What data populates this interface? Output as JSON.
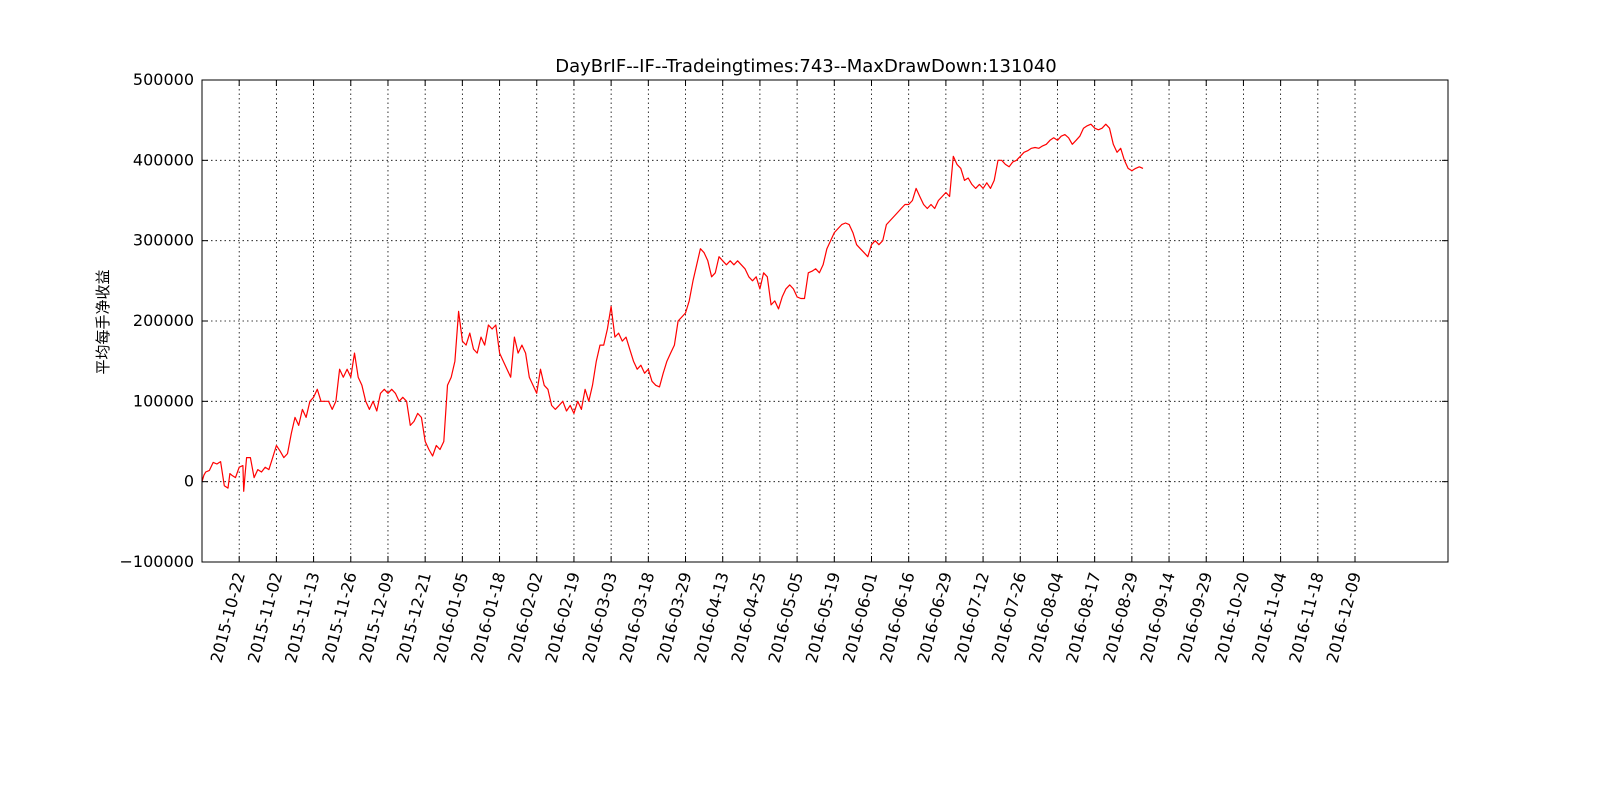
{
  "chart_data": {
    "type": "line",
    "title": "DayBrIF--IF--Tradeingtimes:743--MaxDrawDown:131040",
    "xlabel": "",
    "ylabel": "平均每手净收益",
    "ylim": [
      -100000,
      500000
    ],
    "yticks": [
      -100000,
      0,
      100000,
      200000,
      300000,
      400000,
      500000
    ],
    "ytick_labels": [
      "−100000",
      "0",
      "100000",
      "200000",
      "300000",
      "400000",
      "500000"
    ],
    "xlim": [
      0,
      335
    ],
    "xticks": [
      {
        "x": 10,
        "label": "2015-10-22"
      },
      {
        "x": 20,
        "label": "2015-11-02"
      },
      {
        "x": 30,
        "label": "2015-11-13"
      },
      {
        "x": 40,
        "label": "2015-11-26"
      },
      {
        "x": 50,
        "label": "2015-12-09"
      },
      {
        "x": 60,
        "label": "2015-12-21"
      },
      {
        "x": 70,
        "label": "2016-01-05"
      },
      {
        "x": 80,
        "label": "2016-01-18"
      },
      {
        "x": 90,
        "label": "2016-02-02"
      },
      {
        "x": 100,
        "label": "2016-02-19"
      },
      {
        "x": 110,
        "label": "2016-03-03"
      },
      {
        "x": 120,
        "label": "2016-03-18"
      },
      {
        "x": 130,
        "label": "2016-03-29"
      },
      {
        "x": 140,
        "label": "2016-04-13"
      },
      {
        "x": 150,
        "label": "2016-04-25"
      },
      {
        "x": 160,
        "label": "2016-05-05"
      },
      {
        "x": 170,
        "label": "2016-05-19"
      },
      {
        "x": 180,
        "label": "2016-06-01"
      },
      {
        "x": 190,
        "label": "2016-06-16"
      },
      {
        "x": 200,
        "label": "2016-06-29"
      },
      {
        "x": 210,
        "label": "2016-07-12"
      },
      {
        "x": 220,
        "label": "2016-07-26"
      },
      {
        "x": 230,
        "label": "2016-08-04"
      },
      {
        "x": 240,
        "label": "2016-08-17"
      },
      {
        "x": 250,
        "label": "2016-08-29"
      },
      {
        "x": 260,
        "label": "2016-09-14"
      },
      {
        "x": 270,
        "label": "2016-09-29"
      },
      {
        "x": 280,
        "label": "2016-10-20"
      },
      {
        "x": 290,
        "label": "2016-11-04"
      },
      {
        "x": 300,
        "label": "2016-11-18"
      },
      {
        "x": 310,
        "label": "2016-12-09"
      }
    ],
    "grid": true,
    "series": [
      {
        "color": "#ff0000",
        "points": [
          [
            0,
            0
          ],
          [
            0.5,
            8000
          ],
          [
            1,
            12000
          ],
          [
            2,
            14000
          ],
          [
            3,
            24000
          ],
          [
            4,
            22000
          ],
          [
            5,
            25000
          ],
          [
            6,
            -5000
          ],
          [
            7,
            -8000
          ],
          [
            7.5,
            10000
          ],
          [
            8,
            8000
          ],
          [
            9,
            5000
          ],
          [
            10,
            18000
          ],
          [
            11,
            20000
          ],
          [
            11.2,
            -12000
          ],
          [
            11.5,
            5000
          ],
          [
            12,
            30000
          ],
          [
            13,
            30000
          ],
          [
            14,
            5000
          ],
          [
            15,
            15000
          ],
          [
            16,
            12000
          ],
          [
            17,
            18000
          ],
          [
            18,
            15000
          ],
          [
            19,
            30000
          ],
          [
            20,
            45000
          ],
          [
            21,
            38000
          ],
          [
            22,
            30000
          ],
          [
            23,
            35000
          ],
          [
            24,
            60000
          ],
          [
            25,
            80000
          ],
          [
            26,
            70000
          ],
          [
            27,
            90000
          ],
          [
            28,
            80000
          ],
          [
            29,
            100000
          ],
          [
            30,
            105000
          ],
          [
            31,
            115000
          ],
          [
            32,
            100000
          ],
          [
            33,
            100000
          ],
          [
            34,
            100000
          ],
          [
            35,
            90000
          ],
          [
            36,
            100000
          ],
          [
            37,
            140000
          ],
          [
            38,
            130000
          ],
          [
            39,
            140000
          ],
          [
            40,
            130000
          ],
          [
            41,
            160000
          ],
          [
            42,
            130000
          ],
          [
            43,
            120000
          ],
          [
            44,
            100000
          ],
          [
            45,
            90000
          ],
          [
            46,
            100000
          ],
          [
            47,
            88000
          ],
          [
            48,
            110000
          ],
          [
            49,
            115000
          ],
          [
            50,
            110000
          ],
          [
            51,
            115000
          ],
          [
            52,
            110000
          ],
          [
            53,
            100000
          ],
          [
            54,
            105000
          ],
          [
            55,
            100000
          ],
          [
            56,
            70000
          ],
          [
            57,
            75000
          ],
          [
            58,
            85000
          ],
          [
            59,
            80000
          ],
          [
            60,
            50000
          ],
          [
            61,
            40000
          ],
          [
            62,
            32000
          ],
          [
            63,
            45000
          ],
          [
            64,
            40000
          ],
          [
            65,
            50000
          ],
          [
            66,
            120000
          ],
          [
            67,
            130000
          ],
          [
            68,
            150000
          ],
          [
            69,
            212000
          ],
          [
            70,
            175000
          ],
          [
            71,
            170000
          ],
          [
            72,
            185000
          ],
          [
            73,
            165000
          ],
          [
            74,
            160000
          ],
          [
            75,
            180000
          ],
          [
            76,
            170000
          ],
          [
            77,
            195000
          ],
          [
            78,
            190000
          ],
          [
            79,
            195000
          ],
          [
            80,
            160000
          ],
          [
            81,
            150000
          ],
          [
            82,
            140000
          ],
          [
            83,
            130000
          ],
          [
            84,
            180000
          ],
          [
            85,
            160000
          ],
          [
            86,
            170000
          ],
          [
            87,
            160000
          ],
          [
            88,
            130000
          ],
          [
            89,
            120000
          ],
          [
            90,
            110000
          ],
          [
            91,
            140000
          ],
          [
            92,
            120000
          ],
          [
            93,
            115000
          ],
          [
            94,
            95000
          ],
          [
            95,
            90000
          ],
          [
            96,
            95000
          ],
          [
            97,
            100000
          ],
          [
            98,
            88000
          ],
          [
            99,
            95000
          ],
          [
            100,
            85000
          ],
          [
            101,
            100000
          ],
          [
            102,
            90000
          ],
          [
            103,
            115000
          ],
          [
            104,
            100000
          ],
          [
            105,
            120000
          ],
          [
            106,
            150000
          ],
          [
            107,
            170000
          ],
          [
            108,
            170000
          ],
          [
            109,
            190000
          ],
          [
            110,
            218000
          ],
          [
            111,
            180000
          ],
          [
            112,
            185000
          ],
          [
            113,
            175000
          ],
          [
            114,
            180000
          ],
          [
            115,
            165000
          ],
          [
            116,
            150000
          ],
          [
            117,
            140000
          ],
          [
            118,
            145000
          ],
          [
            119,
            135000
          ],
          [
            120,
            140000
          ],
          [
            121,
            125000
          ],
          [
            122,
            120000
          ],
          [
            123,
            118000
          ],
          [
            124,
            135000
          ],
          [
            125,
            150000
          ],
          [
            126,
            160000
          ],
          [
            127,
            170000
          ],
          [
            128,
            200000
          ],
          [
            129,
            205000
          ],
          [
            130,
            210000
          ],
          [
            131,
            225000
          ],
          [
            132,
            250000
          ],
          [
            133,
            270000
          ],
          [
            134,
            290000
          ],
          [
            135,
            285000
          ],
          [
            136,
            275000
          ],
          [
            137,
            255000
          ],
          [
            138,
            260000
          ],
          [
            139,
            280000
          ],
          [
            140,
            275000
          ],
          [
            141,
            270000
          ],
          [
            142,
            275000
          ],
          [
            143,
            270000
          ],
          [
            144,
            275000
          ],
          [
            145,
            270000
          ],
          [
            146,
            265000
          ],
          [
            147,
            255000
          ],
          [
            148,
            250000
          ],
          [
            149,
            255000
          ],
          [
            150,
            240000
          ],
          [
            151,
            260000
          ],
          [
            152,
            255000
          ],
          [
            153,
            220000
          ],
          [
            154,
            225000
          ],
          [
            155,
            215000
          ],
          [
            156,
            230000
          ],
          [
            157,
            240000
          ],
          [
            158,
            245000
          ],
          [
            159,
            240000
          ],
          [
            160,
            230000
          ],
          [
            161,
            228000
          ],
          [
            162,
            228000
          ],
          [
            163,
            260000
          ],
          [
            164,
            262000
          ],
          [
            165,
            265000
          ],
          [
            166,
            260000
          ],
          [
            167,
            270000
          ],
          [
            168,
            290000
          ],
          [
            169,
            300000
          ],
          [
            170,
            310000
          ],
          [
            171,
            315000
          ],
          [
            172,
            320000
          ],
          [
            173,
            322000
          ],
          [
            174,
            320000
          ],
          [
            175,
            310000
          ],
          [
            176,
            295000
          ],
          [
            177,
            290000
          ],
          [
            178,
            285000
          ],
          [
            179,
            280000
          ],
          [
            180,
            295000
          ],
          [
            181,
            300000
          ],
          [
            182,
            295000
          ],
          [
            183,
            300000
          ],
          [
            184,
            320000
          ],
          [
            185,
            325000
          ],
          [
            186,
            330000
          ],
          [
            187,
            335000
          ],
          [
            188,
            340000
          ],
          [
            189,
            345000
          ],
          [
            190,
            345000
          ],
          [
            191,
            350000
          ],
          [
            192,
            365000
          ],
          [
            193,
            355000
          ],
          [
            194,
            345000
          ],
          [
            195,
            340000
          ],
          [
            196,
            345000
          ],
          [
            197,
            340000
          ],
          [
            198,
            350000
          ],
          [
            199,
            355000
          ],
          [
            200,
            360000
          ],
          [
            201,
            355000
          ],
          [
            202,
            405000
          ],
          [
            203,
            395000
          ],
          [
            204,
            390000
          ],
          [
            205,
            375000
          ],
          [
            206,
            378000
          ],
          [
            207,
            370000
          ],
          [
            208,
            365000
          ],
          [
            209,
            370000
          ],
          [
            210,
            365000
          ],
          [
            211,
            372000
          ],
          [
            212,
            365000
          ],
          [
            213,
            375000
          ],
          [
            214,
            400000
          ],
          [
            215,
            400000
          ],
          [
            216,
            395000
          ],
          [
            217,
            392000
          ],
          [
            218,
            398000
          ],
          [
            219,
            400000
          ],
          [
            220,
            405000
          ],
          [
            221,
            410000
          ],
          [
            222,
            412000
          ],
          [
            223,
            415000
          ],
          [
            224,
            416000
          ],
          [
            225,
            415000
          ],
          [
            226,
            418000
          ],
          [
            227,
            420000
          ],
          [
            228,
            425000
          ],
          [
            229,
            428000
          ],
          [
            230,
            425000
          ],
          [
            231,
            430000
          ],
          [
            232,
            432000
          ],
          [
            233,
            428000
          ],
          [
            234,
            420000
          ],
          [
            235,
            425000
          ],
          [
            236,
            430000
          ],
          [
            237,
            440000
          ],
          [
            238,
            443000
          ],
          [
            239,
            445000
          ],
          [
            240,
            440000
          ],
          [
            241,
            438000
          ],
          [
            242,
            440000
          ],
          [
            243,
            445000
          ],
          [
            244,
            440000
          ],
          [
            245,
            420000
          ],
          [
            246,
            410000
          ],
          [
            247,
            415000
          ],
          [
            248,
            400000
          ],
          [
            249,
            390000
          ],
          [
            250,
            387000
          ],
          [
            251,
            390000
          ],
          [
            252,
            392000
          ],
          [
            253,
            390000
          ]
        ]
      }
    ]
  }
}
